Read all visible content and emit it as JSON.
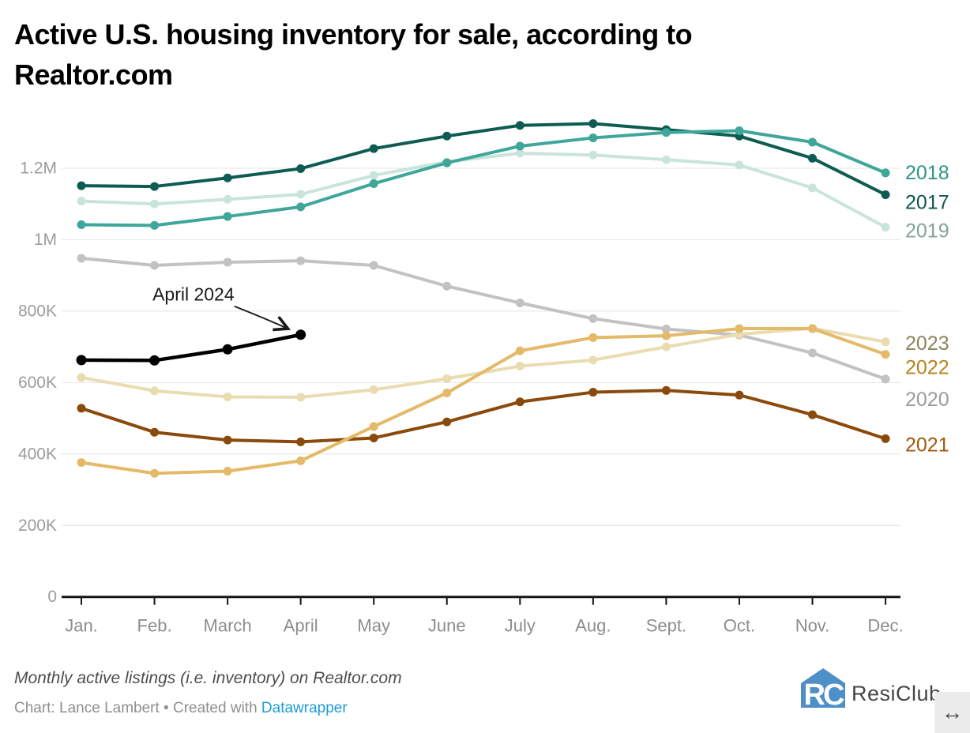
{
  "title": "Active U.S. housing inventory for sale, according to Realtor.com",
  "title_lines": [
    "Active U.S. housing inventory for sale, according to",
    "Realtor.com"
  ],
  "chart_data": {
    "type": "line",
    "title": "Active U.S. housing inventory for sale, according to Realtor.com",
    "unit": "active listings, values in thousands",
    "grid": true,
    "legend_position": "right-edge-year-labels",
    "x": [
      "Jan.",
      "Feb.",
      "March",
      "April",
      "May",
      "June",
      "July",
      "Aug.",
      "Sept.",
      "Oct.",
      "Nov.",
      "Dec."
    ],
    "y_ticks": [
      {
        "label": "1.2M",
        "value": 1200
      },
      {
        "label": "1M",
        "value": 1000
      },
      {
        "label": "800K",
        "value": 800
      },
      {
        "label": "600K",
        "value": 600
      },
      {
        "label": "400K",
        "value": 400
      },
      {
        "label": "200K",
        "value": 200
      },
      {
        "label": "0",
        "value": 0
      }
    ],
    "ylim_thousands": [
      0,
      1400
    ],
    "series": [
      {
        "name": "2017",
        "color": "#0d5c52",
        "label_color": "#0f5a50",
        "values": [
          1151,
          1149,
          1173,
          1199,
          1255,
          1290,
          1320,
          1325,
          1308,
          1290,
          1228,
          1126
        ]
      },
      {
        "name": "2018",
        "color": "#3ea79a",
        "label_color": "#2f9489",
        "values": [
          1042,
          1040,
          1065,
          1092,
          1157,
          1215,
          1262,
          1285,
          1300,
          1305,
          1273,
          1187
        ]
      },
      {
        "name": "2019",
        "color": "#c9e5da",
        "label_color": "#84a49b",
        "values": [
          1108,
          1100,
          1113,
          1127,
          1180,
          1218,
          1242,
          1237,
          1224,
          1209,
          1145,
          1035
        ]
      },
      {
        "name": "2020",
        "color": "#c2c2c2",
        "label_color": "#9c9c9c",
        "values": [
          948,
          928,
          937,
          941,
          928,
          870,
          823,
          779,
          750,
          733,
          683,
          610
        ]
      },
      {
        "name": "2021",
        "color": "#8a4a0b",
        "label_color": "#9e5a0e",
        "values": [
          528,
          461,
          439,
          434,
          445,
          490,
          546,
          573,
          578,
          565,
          510,
          443
        ]
      },
      {
        "name": "2022",
        "color": "#e4b967",
        "label_color": "#b6831d",
        "values": [
          376,
          346,
          352,
          381,
          477,
          571,
          689,
          726,
          731,
          751,
          751,
          679
        ]
      },
      {
        "name": "2023",
        "color": "#e9dcb0",
        "label_color": "#8e845b",
        "values": [
          614,
          577,
          560,
          559,
          580,
          611,
          646,
          663,
          700,
          735,
          752,
          714
        ]
      },
      {
        "name": "2024",
        "color": "#000000",
        "label_color": null,
        "values": [
          663,
          662,
          693,
          734
        ]
      }
    ],
    "draw_order": [
      "2019",
      "2017",
      "2018",
      "2020",
      "2023",
      "2021",
      "2022",
      "2024"
    ],
    "annotation": {
      "text": "April 2024",
      "series": "2024",
      "month_index": 3
    }
  },
  "footer": {
    "note": "Monthly active listings (i.e. inventory) on Realtor.com",
    "byline_prefix": "Chart: Lance Lambert • Created with ",
    "byline_link": "Datawrapper",
    "logo_monogram": "RC",
    "logo_text": "ResiClub",
    "resize_icon": "↔"
  }
}
